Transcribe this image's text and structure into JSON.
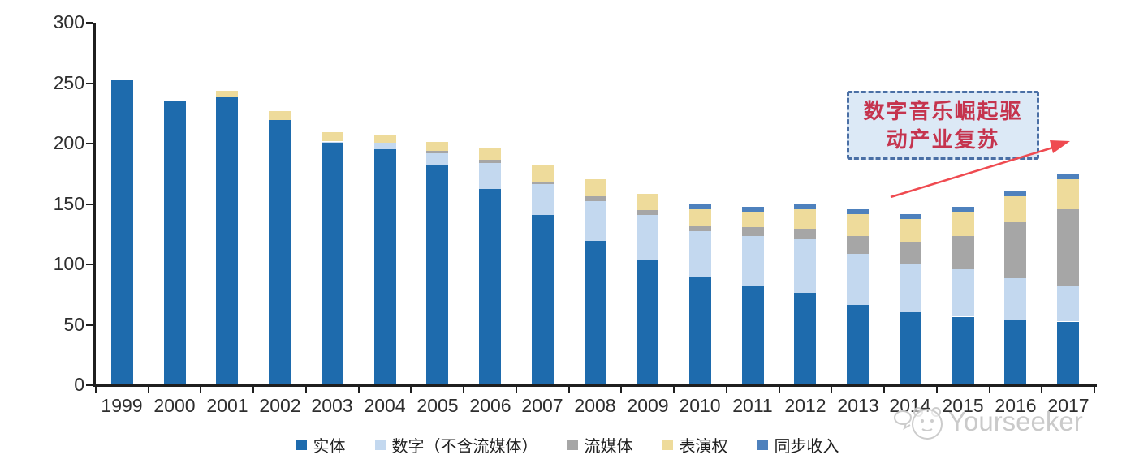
{
  "chart_data": {
    "type": "bar",
    "subtype": "stacked",
    "title": "",
    "xlabel": "",
    "ylabel": "",
    "ylim": [
      0,
      300
    ],
    "yticks": [
      0,
      50,
      100,
      150,
      200,
      250,
      300
    ],
    "grid": false,
    "legend_position": "bottom",
    "categories": [
      "1999",
      "2000",
      "2001",
      "2002",
      "2003",
      "2004",
      "2005",
      "2006",
      "2007",
      "2008",
      "2009",
      "2010",
      "2011",
      "2012",
      "2013",
      "2014",
      "2015",
      "2016",
      "2017"
    ],
    "series": [
      {
        "key": "physical",
        "name": "实体",
        "color": "#1E6BAD",
        "values": [
          252,
          234,
          238,
          219,
          200,
          195,
          181,
          162,
          140,
          119,
          103,
          89,
          81,
          76,
          66,
          60,
          56,
          54,
          52
        ]
      },
      {
        "key": "digital-excl-streaming",
        "name": "数字（不含流媒体）",
        "color": "#C3D8EF",
        "values": [
          0,
          0,
          0,
          0,
          1,
          5,
          10,
          21,
          26,
          33,
          37,
          38,
          42,
          44,
          42,
          40,
          39,
          34,
          29
        ]
      },
      {
        "key": "streaming",
        "name": "流媒体",
        "color": "#A6A6A6",
        "values": [
          0,
          0,
          0,
          0,
          0,
          0,
          2,
          3,
          2,
          4,
          4,
          4,
          7,
          9,
          15,
          18,
          28,
          46,
          64
        ]
      },
      {
        "key": "performance-rights",
        "name": "表演权",
        "color": "#EEDB9B",
        "values": [
          0,
          0,
          5,
          7,
          8,
          7,
          8,
          9,
          13,
          14,
          14,
          14,
          13,
          16,
          18,
          19,
          20,
          22,
          25
        ]
      },
      {
        "key": "sync-revenue",
        "name": "同步收入",
        "color": "#4E81BD",
        "values": [
          0,
          0,
          0,
          0,
          0,
          0,
          0,
          0,
          0,
          0,
          0,
          4,
          4,
          4,
          4,
          4,
          4,
          4,
          4
        ]
      }
    ],
    "axis_color": "#1f1f1f",
    "label_color": "#2e2e2e"
  },
  "annotation": {
    "line1": "数字音乐崛起驱",
    "line2": "动产业复苏",
    "box_fill": "#DCE9F6",
    "box_border_color": "#4A6FA5",
    "text_color": "#C5344E",
    "arrow_color": "#EF4A50"
  },
  "watermark": {
    "brand": "Yourseeker",
    "logo_icon": "mascot-face-logo",
    "color": "#C8C8C8"
  }
}
